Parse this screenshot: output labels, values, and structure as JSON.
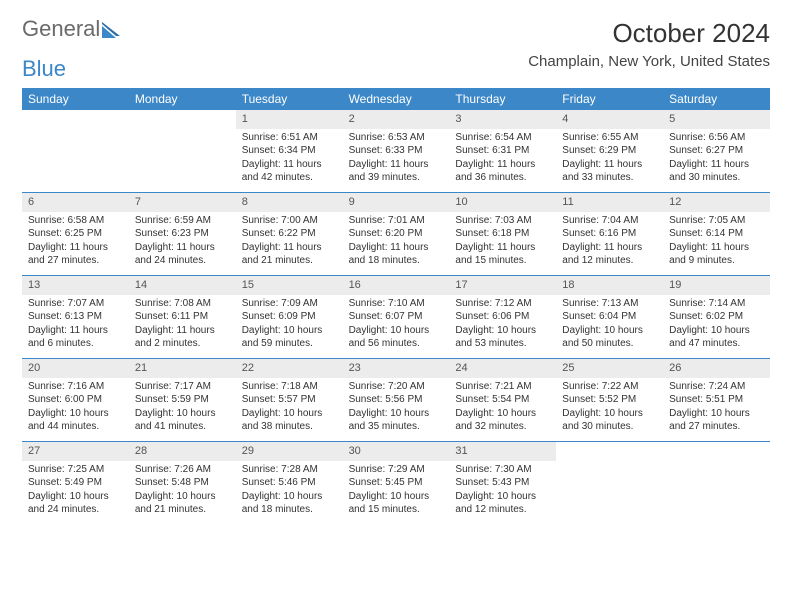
{
  "brand": {
    "part1": "General",
    "part2": "Blue"
  },
  "title": "October 2024",
  "location": "Champlain, New York, United States",
  "colors": {
    "header_bg": "#3b87c8",
    "daynum_bg": "#ececec",
    "rule": "#3b87c8",
    "text": "#333333",
    "title_text": "#333333"
  },
  "weekdays": [
    "Sunday",
    "Monday",
    "Tuesday",
    "Wednesday",
    "Thursday",
    "Friday",
    "Saturday"
  ],
  "weeks": [
    [
      null,
      null,
      {
        "n": "1",
        "sr": "Sunrise: 6:51 AM",
        "ss": "Sunset: 6:34 PM",
        "dl": "Daylight: 11 hours and 42 minutes."
      },
      {
        "n": "2",
        "sr": "Sunrise: 6:53 AM",
        "ss": "Sunset: 6:33 PM",
        "dl": "Daylight: 11 hours and 39 minutes."
      },
      {
        "n": "3",
        "sr": "Sunrise: 6:54 AM",
        "ss": "Sunset: 6:31 PM",
        "dl": "Daylight: 11 hours and 36 minutes."
      },
      {
        "n": "4",
        "sr": "Sunrise: 6:55 AM",
        "ss": "Sunset: 6:29 PM",
        "dl": "Daylight: 11 hours and 33 minutes."
      },
      {
        "n": "5",
        "sr": "Sunrise: 6:56 AM",
        "ss": "Sunset: 6:27 PM",
        "dl": "Daylight: 11 hours and 30 minutes."
      }
    ],
    [
      {
        "n": "6",
        "sr": "Sunrise: 6:58 AM",
        "ss": "Sunset: 6:25 PM",
        "dl": "Daylight: 11 hours and 27 minutes."
      },
      {
        "n": "7",
        "sr": "Sunrise: 6:59 AM",
        "ss": "Sunset: 6:23 PM",
        "dl": "Daylight: 11 hours and 24 minutes."
      },
      {
        "n": "8",
        "sr": "Sunrise: 7:00 AM",
        "ss": "Sunset: 6:22 PM",
        "dl": "Daylight: 11 hours and 21 minutes."
      },
      {
        "n": "9",
        "sr": "Sunrise: 7:01 AM",
        "ss": "Sunset: 6:20 PM",
        "dl": "Daylight: 11 hours and 18 minutes."
      },
      {
        "n": "10",
        "sr": "Sunrise: 7:03 AM",
        "ss": "Sunset: 6:18 PM",
        "dl": "Daylight: 11 hours and 15 minutes."
      },
      {
        "n": "11",
        "sr": "Sunrise: 7:04 AM",
        "ss": "Sunset: 6:16 PM",
        "dl": "Daylight: 11 hours and 12 minutes."
      },
      {
        "n": "12",
        "sr": "Sunrise: 7:05 AM",
        "ss": "Sunset: 6:14 PM",
        "dl": "Daylight: 11 hours and 9 minutes."
      }
    ],
    [
      {
        "n": "13",
        "sr": "Sunrise: 7:07 AM",
        "ss": "Sunset: 6:13 PM",
        "dl": "Daylight: 11 hours and 6 minutes."
      },
      {
        "n": "14",
        "sr": "Sunrise: 7:08 AM",
        "ss": "Sunset: 6:11 PM",
        "dl": "Daylight: 11 hours and 2 minutes."
      },
      {
        "n": "15",
        "sr": "Sunrise: 7:09 AM",
        "ss": "Sunset: 6:09 PM",
        "dl": "Daylight: 10 hours and 59 minutes."
      },
      {
        "n": "16",
        "sr": "Sunrise: 7:10 AM",
        "ss": "Sunset: 6:07 PM",
        "dl": "Daylight: 10 hours and 56 minutes."
      },
      {
        "n": "17",
        "sr": "Sunrise: 7:12 AM",
        "ss": "Sunset: 6:06 PM",
        "dl": "Daylight: 10 hours and 53 minutes."
      },
      {
        "n": "18",
        "sr": "Sunrise: 7:13 AM",
        "ss": "Sunset: 6:04 PM",
        "dl": "Daylight: 10 hours and 50 minutes."
      },
      {
        "n": "19",
        "sr": "Sunrise: 7:14 AM",
        "ss": "Sunset: 6:02 PM",
        "dl": "Daylight: 10 hours and 47 minutes."
      }
    ],
    [
      {
        "n": "20",
        "sr": "Sunrise: 7:16 AM",
        "ss": "Sunset: 6:00 PM",
        "dl": "Daylight: 10 hours and 44 minutes."
      },
      {
        "n": "21",
        "sr": "Sunrise: 7:17 AM",
        "ss": "Sunset: 5:59 PM",
        "dl": "Daylight: 10 hours and 41 minutes."
      },
      {
        "n": "22",
        "sr": "Sunrise: 7:18 AM",
        "ss": "Sunset: 5:57 PM",
        "dl": "Daylight: 10 hours and 38 minutes."
      },
      {
        "n": "23",
        "sr": "Sunrise: 7:20 AM",
        "ss": "Sunset: 5:56 PM",
        "dl": "Daylight: 10 hours and 35 minutes."
      },
      {
        "n": "24",
        "sr": "Sunrise: 7:21 AM",
        "ss": "Sunset: 5:54 PM",
        "dl": "Daylight: 10 hours and 32 minutes."
      },
      {
        "n": "25",
        "sr": "Sunrise: 7:22 AM",
        "ss": "Sunset: 5:52 PM",
        "dl": "Daylight: 10 hours and 30 minutes."
      },
      {
        "n": "26",
        "sr": "Sunrise: 7:24 AM",
        "ss": "Sunset: 5:51 PM",
        "dl": "Daylight: 10 hours and 27 minutes."
      }
    ],
    [
      {
        "n": "27",
        "sr": "Sunrise: 7:25 AM",
        "ss": "Sunset: 5:49 PM",
        "dl": "Daylight: 10 hours and 24 minutes."
      },
      {
        "n": "28",
        "sr": "Sunrise: 7:26 AM",
        "ss": "Sunset: 5:48 PM",
        "dl": "Daylight: 10 hours and 21 minutes."
      },
      {
        "n": "29",
        "sr": "Sunrise: 7:28 AM",
        "ss": "Sunset: 5:46 PM",
        "dl": "Daylight: 10 hours and 18 minutes."
      },
      {
        "n": "30",
        "sr": "Sunrise: 7:29 AM",
        "ss": "Sunset: 5:45 PM",
        "dl": "Daylight: 10 hours and 15 minutes."
      },
      {
        "n": "31",
        "sr": "Sunrise: 7:30 AM",
        "ss": "Sunset: 5:43 PM",
        "dl": "Daylight: 10 hours and 12 minutes."
      },
      null,
      null
    ]
  ]
}
